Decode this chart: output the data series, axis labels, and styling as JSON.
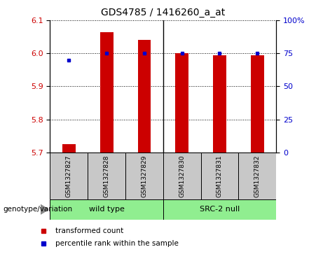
{
  "title": "GDS4785 / 1416260_a_at",
  "samples": [
    "GSM1327827",
    "GSM1327828",
    "GSM1327829",
    "GSM1327830",
    "GSM1327831",
    "GSM1327832"
  ],
  "red_values": [
    5.725,
    6.065,
    6.04,
    6.0,
    5.995,
    5.995
  ],
  "blue_values_pct": [
    70,
    75,
    75,
    75,
    75,
    75
  ],
  "ylim_left": [
    5.7,
    6.1
  ],
  "ylim_right": [
    0,
    100
  ],
  "yticks_left": [
    5.7,
    5.8,
    5.9,
    6.0,
    6.1
  ],
  "yticks_right": [
    0,
    25,
    50,
    75,
    100
  ],
  "bar_color": "#CC0000",
  "dot_color": "#0000CC",
  "bar_bottom": 5.7,
  "tick_label_color_left": "#CC0000",
  "tick_label_color_right": "#0000CC",
  "legend_red": "transformed count",
  "legend_blue": "percentile rank within the sample",
  "genotype_label": "genotype/variation",
  "group_defs": [
    [
      0,
      2,
      "wild type"
    ],
    [
      3,
      5,
      "SRC-2 null"
    ]
  ],
  "group_green": "#90EE90",
  "sample_gray": "#C8C8C8",
  "bar_width": 0.35
}
